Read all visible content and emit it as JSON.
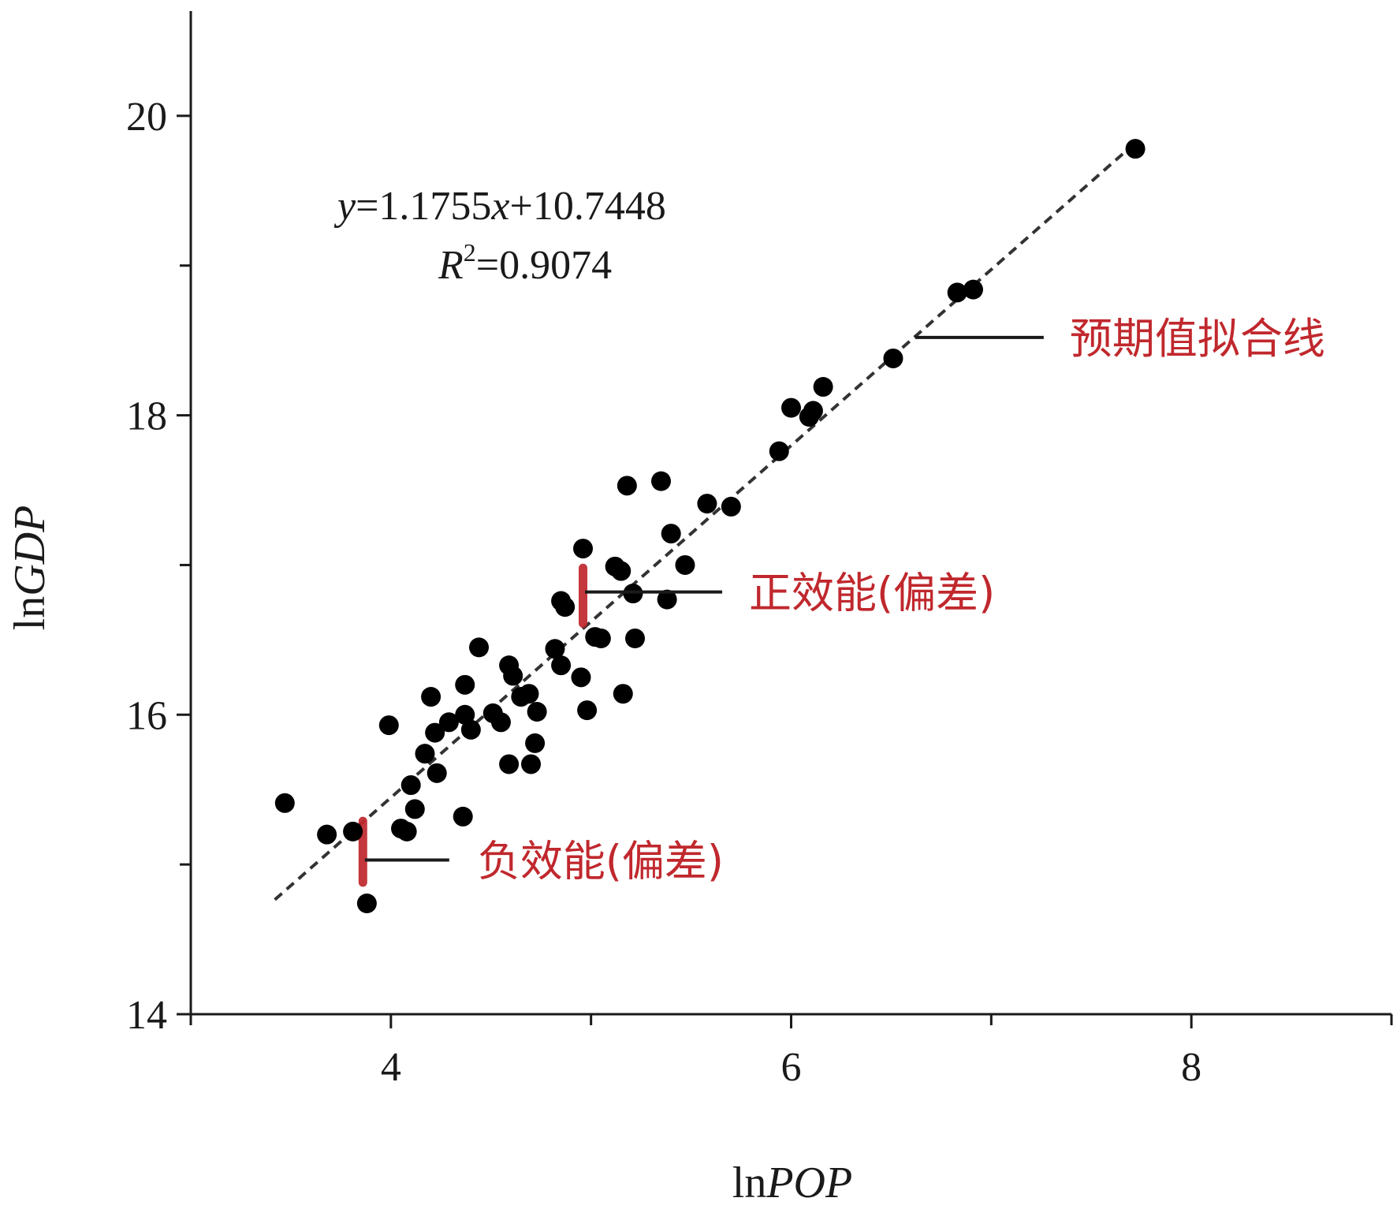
{
  "chart_data": {
    "type": "scatter",
    "xlabel": {
      "prefix": "ln",
      "var": "POP"
    },
    "ylabel": {
      "prefix": "ln",
      "var": "GDP"
    },
    "xlim": [
      3.0,
      9.0
    ],
    "ylim": [
      14,
      20.7
    ],
    "x_ticks": [
      4,
      6,
      8
    ],
    "y_ticks": [
      14,
      16,
      18,
      20
    ],
    "x_tick_labels": [
      "4",
      "6",
      "8"
    ],
    "y_tick_labels": [
      "14",
      "16",
      "18",
      "20"
    ],
    "grid": false,
    "equation": {
      "y": "y",
      "eq": "=1.1755",
      "x": "x",
      "rest": "+10.7448"
    },
    "r_squared": {
      "r": "R",
      "sup": "2",
      "rest": "=0.9074"
    },
    "fit": {
      "slope": 1.1755,
      "intercept": 10.7448,
      "x_range": [
        3.42,
        7.73
      ],
      "color": "#333333"
    },
    "annotations": [
      {
        "label": "预期值拟合线",
        "x": 6.62,
        "y": 18.52,
        "color": "#c0282d"
      },
      {
        "label": "正效能(偏差)",
        "x": 4.97,
        "y": 16.82,
        "color": "#c0282d"
      },
      {
        "label": "负效能(偏差)",
        "x": 3.87,
        "y": 15.03,
        "color": "#c0282d"
      }
    ],
    "deviation_bars": [
      {
        "x": 4.96,
        "y1": 16.61,
        "y2": 16.98
      },
      {
        "x": 3.86,
        "y1": 14.88,
        "y2": 15.29
      }
    ],
    "point_color": "#000000",
    "points": [
      [
        3.47,
        15.41
      ],
      [
        3.68,
        15.2
      ],
      [
        3.81,
        15.22
      ],
      [
        3.88,
        14.74
      ],
      [
        3.99,
        15.93
      ],
      [
        4.05,
        15.24
      ],
      [
        4.08,
        15.22
      ],
      [
        4.1,
        15.53
      ],
      [
        4.12,
        15.37
      ],
      [
        4.17,
        15.74
      ],
      [
        4.2,
        16.12
      ],
      [
        4.22,
        15.88
      ],
      [
        4.23,
        15.61
      ],
      [
        4.29,
        15.95
      ],
      [
        4.36,
        15.32
      ],
      [
        4.37,
        16.2
      ],
      [
        4.37,
        16.0
      ],
      [
        4.4,
        15.9
      ],
      [
        4.44,
        16.45
      ],
      [
        4.51,
        16.01
      ],
      [
        4.55,
        15.95
      ],
      [
        4.59,
        16.33
      ],
      [
        4.59,
        15.67
      ],
      [
        4.61,
        16.26
      ],
      [
        4.65,
        16.12
      ],
      [
        4.69,
        16.14
      ],
      [
        4.7,
        15.67
      ],
      [
        4.72,
        15.81
      ],
      [
        4.73,
        16.02
      ],
      [
        4.82,
        16.44
      ],
      [
        4.85,
        16.76
      ],
      [
        4.85,
        16.33
      ],
      [
        4.87,
        16.72
      ],
      [
        4.95,
        16.25
      ],
      [
        4.96,
        17.11
      ],
      [
        4.98,
        16.03
      ],
      [
        5.02,
        16.52
      ],
      [
        5.05,
        16.51
      ],
      [
        5.12,
        16.99
      ],
      [
        5.15,
        16.96
      ],
      [
        5.16,
        16.14
      ],
      [
        5.18,
        17.53
      ],
      [
        5.21,
        16.81
      ],
      [
        5.22,
        16.51
      ],
      [
        5.35,
        17.56
      ],
      [
        5.38,
        16.77
      ],
      [
        5.4,
        17.21
      ],
      [
        5.47,
        17.0
      ],
      [
        5.58,
        17.41
      ],
      [
        5.7,
        17.39
      ],
      [
        5.94,
        17.76
      ],
      [
        6.0,
        18.05
      ],
      [
        6.09,
        17.99
      ],
      [
        6.11,
        18.03
      ],
      [
        6.16,
        18.19
      ],
      [
        6.51,
        18.38
      ],
      [
        6.83,
        18.82
      ],
      [
        6.91,
        18.84
      ],
      [
        7.72,
        19.78
      ]
    ]
  }
}
